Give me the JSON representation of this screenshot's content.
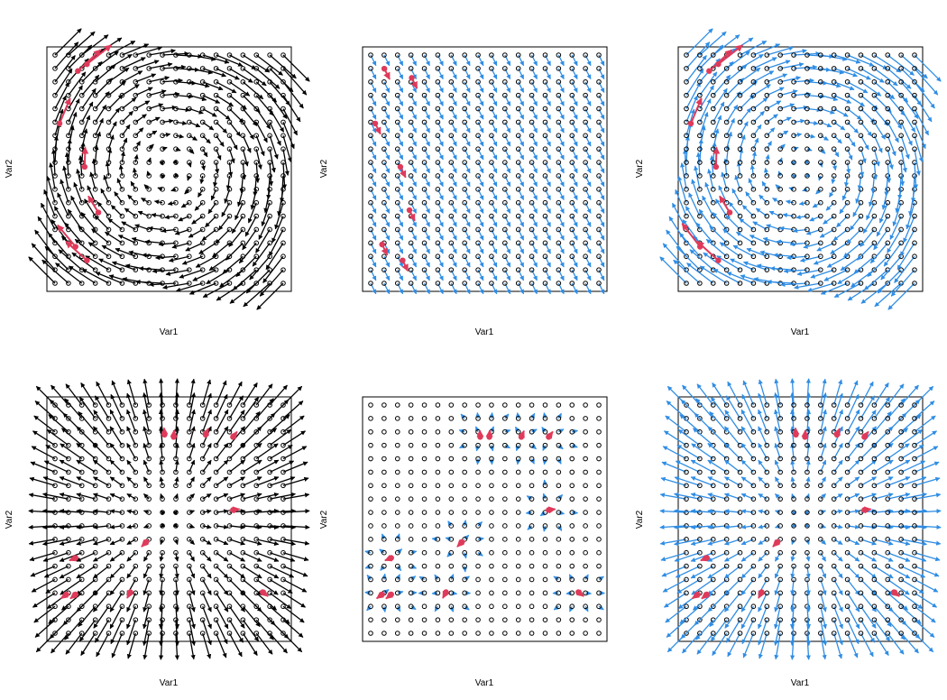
{
  "colors": {
    "background": "#ffffff",
    "frame": "#000000",
    "grid_point": "#000000",
    "black_arrow": "#000000",
    "blue_arrow": "#2f8de4",
    "highlight": "#df3a5a"
  },
  "chart_data": [
    {
      "type": "vector-field",
      "field": "rotation",
      "arrow_color": "black",
      "xlabel": "Var1",
      "ylabel": "Var2",
      "grid": {
        "nx": 18,
        "ny": 18
      },
      "highlight_points": [
        [
          0.1,
          0.93
        ],
        [
          0.14,
          0.96
        ],
        [
          0.02,
          0.7
        ],
        [
          0.13,
          0.51
        ],
        [
          0.19,
          0.31
        ],
        [
          0.09,
          0.16
        ],
        [
          0.14,
          0.1
        ]
      ],
      "axes_visible": false
    },
    {
      "type": "vector-field",
      "field": "downward-diagonal",
      "arrow_color": "blue",
      "xlabel": "Var1",
      "ylabel": "Var2",
      "grid": {
        "nx": 18,
        "ny": 18
      },
      "highlight_points": [
        [
          0.06,
          0.94
        ],
        [
          0.18,
          0.9
        ],
        [
          0.02,
          0.7
        ],
        [
          0.13,
          0.51
        ],
        [
          0.17,
          0.32
        ],
        [
          0.05,
          0.17
        ],
        [
          0.14,
          0.1
        ]
      ],
      "axes_visible": false
    },
    {
      "type": "vector-field",
      "field": "rotation",
      "arrow_color": "blue",
      "xlabel": "Var1",
      "ylabel": "Var2",
      "grid": {
        "nx": 18,
        "ny": 18
      },
      "highlight_points": [
        [
          0.1,
          0.93
        ],
        [
          0.14,
          0.96
        ],
        [
          0.02,
          0.7
        ],
        [
          0.13,
          0.51
        ],
        [
          0.19,
          0.31
        ],
        [
          0.06,
          0.16
        ],
        [
          0.14,
          0.1
        ]
      ],
      "axes_visible": false
    },
    {
      "type": "vector-field",
      "field": "radial-outward",
      "arrow_color": "black",
      "xlabel": "Var1",
      "ylabel": "Var2",
      "grid": {
        "nx": 18,
        "ny": 18
      },
      "highlight_points": [
        [
          0.48,
          0.87
        ],
        [
          0.52,
          0.86
        ],
        [
          0.66,
          0.87
        ],
        [
          0.78,
          0.86
        ],
        [
          0.78,
          0.54
        ],
        [
          0.4,
          0.4
        ],
        [
          0.09,
          0.33
        ],
        [
          0.09,
          0.17
        ],
        [
          0.33,
          0.18
        ],
        [
          0.91,
          0.18
        ],
        [
          0.05,
          0.17
        ]
      ],
      "axes_visible": false
    },
    {
      "type": "vector-field",
      "field": "local-clusters",
      "arrow_color": "blue",
      "xlabel": "Var1",
      "ylabel": "Var2",
      "grid": {
        "nx": 18,
        "ny": 18
      },
      "highlight_points": [
        [
          0.48,
          0.86
        ],
        [
          0.52,
          0.86
        ],
        [
          0.66,
          0.86
        ],
        [
          0.78,
          0.86
        ],
        [
          0.78,
          0.54
        ],
        [
          0.4,
          0.4
        ],
        [
          0.09,
          0.33
        ],
        [
          0.09,
          0.17
        ],
        [
          0.33,
          0.18
        ],
        [
          0.91,
          0.18
        ],
        [
          0.05,
          0.17
        ]
      ],
      "axes_visible": false
    },
    {
      "type": "vector-field",
      "field": "radial-outward",
      "arrow_color": "blue",
      "xlabel": "Var1",
      "ylabel": "Var2",
      "grid": {
        "nx": 18,
        "ny": 18
      },
      "highlight_points": [
        [
          0.48,
          0.87
        ],
        [
          0.52,
          0.86
        ],
        [
          0.66,
          0.87
        ],
        [
          0.78,
          0.86
        ],
        [
          0.78,
          0.54
        ],
        [
          0.4,
          0.4
        ],
        [
          0.09,
          0.33
        ],
        [
          0.09,
          0.17
        ],
        [
          0.33,
          0.18
        ],
        [
          0.91,
          0.18
        ],
        [
          0.05,
          0.17
        ]
      ],
      "axes_visible": false
    }
  ]
}
